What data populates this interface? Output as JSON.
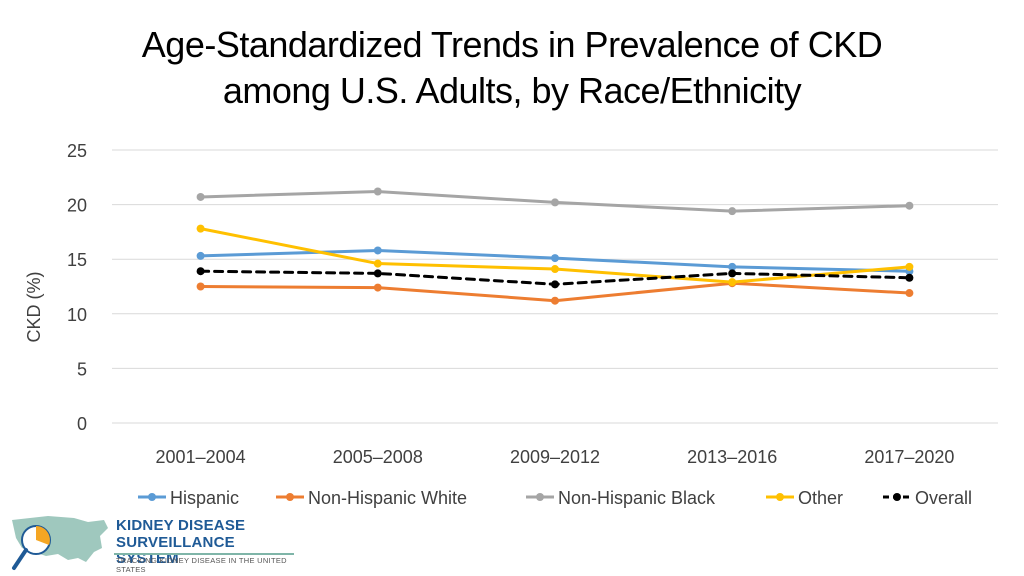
{
  "title_line1": "Age-Standardized Trends in Prevalence of CKD",
  "title_line2": "among U.S. Adults, by Race/Ethnicity",
  "chart_data": {
    "type": "line",
    "title": "Age-Standardized Trends in Prevalence of CKD among U.S. Adults, by Race/Ethnicity",
    "xlabel": "",
    "ylabel": "CKD (%)",
    "ylim": [
      0,
      25
    ],
    "yticks": [
      0,
      5,
      10,
      15,
      20,
      25
    ],
    "grid": true,
    "legend_position": "bottom",
    "categories": [
      "2001–2004",
      "2005–2008",
      "2009–2012",
      "2013–2016",
      "2017–2020"
    ],
    "series": [
      {
        "name": "Hispanic",
        "color": "#5b9bd5",
        "dashed": false,
        "values": [
          15.3,
          15.8,
          15.1,
          14.3,
          13.9
        ]
      },
      {
        "name": "Non-Hispanic White",
        "color": "#ed7d31",
        "dashed": false,
        "values": [
          12.5,
          12.4,
          11.2,
          12.8,
          11.9
        ]
      },
      {
        "name": "Non-Hispanic Black",
        "color": "#a5a5a5",
        "dashed": false,
        "values": [
          20.7,
          21.2,
          20.2,
          19.4,
          19.9
        ]
      },
      {
        "name": "Other",
        "color": "#ffc000",
        "dashed": false,
        "values": [
          17.8,
          14.6,
          14.1,
          12.9,
          14.3
        ]
      },
      {
        "name": "Overall",
        "color": "#000000",
        "dashed": true,
        "values": [
          13.9,
          13.7,
          12.7,
          13.7,
          13.3
        ]
      }
    ]
  },
  "logo": {
    "line1": "KIDNEY DISEASE",
    "line2": "SURVEILLANCE SYSTEM",
    "tagline": "TRACKING KIDNEY DISEASE IN THE UNITED STATES",
    "color_primary": "#1f5a96",
    "color_map": "#7fb5a8",
    "color_accent": "#f5a623"
  }
}
